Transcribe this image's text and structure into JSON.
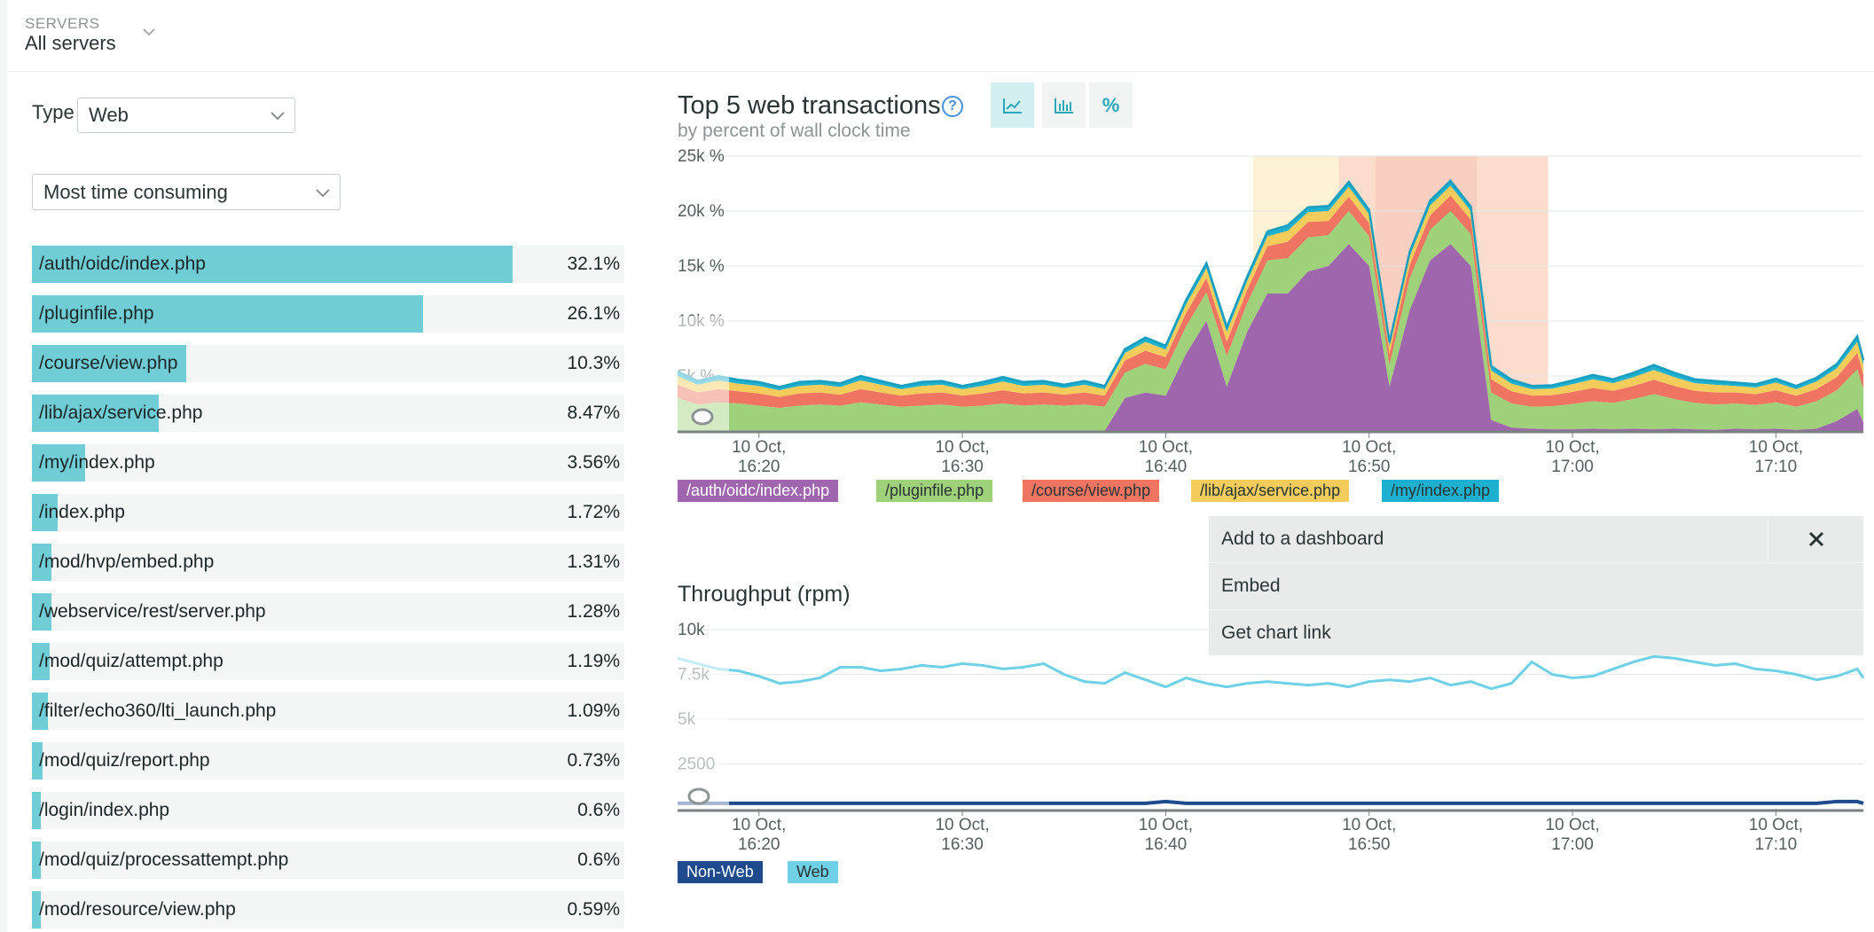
{
  "header": {
    "servers_label": "SERVERS",
    "servers_value": "All servers"
  },
  "filters": {
    "type_label": "Type",
    "type_value": "Web",
    "sort_value": "Most time consuming"
  },
  "transactions": [
    {
      "name": "/auth/oidc/index.php",
      "pct": "32.1%",
      "value": 32.1
    },
    {
      "name": "/pluginfile.php",
      "pct": "26.1%",
      "value": 26.1
    },
    {
      "name": "/course/view.php",
      "pct": "10.3%",
      "value": 10.3
    },
    {
      "name": "/lib/ajax/service.php",
      "pct": "8.47%",
      "value": 8.47
    },
    {
      "name": "/my/index.php",
      "pct": "3.56%",
      "value": 3.56
    },
    {
      "name": "/index.php",
      "pct": "1.72%",
      "value": 1.72
    },
    {
      "name": "/mod/hvp/embed.php",
      "pct": "1.31%",
      "value": 1.31
    },
    {
      "name": "/webservice/rest/server.php",
      "pct": "1.28%",
      "value": 1.28
    },
    {
      "name": "/mod/quiz/attempt.php",
      "pct": "1.19%",
      "value": 1.19
    },
    {
      "name": "/filter/echo360/lti_launch.php",
      "pct": "1.09%",
      "value": 1.09
    },
    {
      "name": "/mod/quiz/report.php",
      "pct": "0.73%",
      "value": 0.73
    },
    {
      "name": "/login/index.php",
      "pct": "0.6%",
      "value": 0.6
    },
    {
      "name": "/mod/quiz/processattempt.php",
      "pct": "0.6%",
      "value": 0.6
    },
    {
      "name": "/mod/resource/view.php",
      "pct": "0.59%",
      "value": 0.59
    }
  ],
  "top_chart": {
    "title": "Top 5 web transactions",
    "subtitle": "by percent of wall clock time",
    "help_glyph": "?",
    "pct_button": "%",
    "legend": [
      {
        "name": "/auth/oidc/index.php",
        "color": "#a066ad",
        "text_color": "#ffffff"
      },
      {
        "name": "/pluginfile.php",
        "color": "#9fd07a",
        "text_color": "#2a3434"
      },
      {
        "name": "/course/view.php",
        "color": "#ef7562",
        "text_color": "#2a3434"
      },
      {
        "name": "/lib/ajax/service.php",
        "color": "#f3cc5c",
        "text_color": "#2a3434"
      },
      {
        "name": "/my/index.php",
        "color": "#1db0cf",
        "text_color": "#2a3434"
      }
    ]
  },
  "throughput": {
    "title": "Throughput (rpm)",
    "legend": [
      {
        "name": "Non-Web",
        "color": "#1f4a8b",
        "text_color": "#ffffff"
      },
      {
        "name": "Web",
        "color": "#6fd0e6",
        "text_color": "#2a3434"
      }
    ]
  },
  "menu": {
    "add_label": "Add to a dashboard",
    "embed_label": "Embed",
    "link_label": "Get chart link"
  },
  "chart_data": [
    {
      "type": "area",
      "title": "Top 5 web transactions",
      "subtitle": "by percent of wall clock time",
      "ylim": [
        0,
        25000
      ],
      "yticks": [
        "5k %",
        "10k %",
        "15k %",
        "20k %",
        "25k %"
      ],
      "xticks": [
        {
          "l1": "10 Oct,",
          "l2": "16:20"
        },
        {
          "l1": "10 Oct,",
          "l2": "16:30"
        },
        {
          "l1": "10 Oct,",
          "l2": "16:40"
        },
        {
          "l1": "10 Oct,",
          "l2": "16:50"
        },
        {
          "l1": "10 Oct,",
          "l2": "17:00"
        },
        {
          "l1": "10 Oct,",
          "l2": "17:10"
        }
      ],
      "time_range_minutes": [
        16.0,
        74.3
      ],
      "x_minutes": [
        16.0,
        17.0,
        18.0,
        19.0,
        20.0,
        21.0,
        22.0,
        23.0,
        24.0,
        25.0,
        26.0,
        27.0,
        28.0,
        29.0,
        30.0,
        31.0,
        32.0,
        33.0,
        34.0,
        35.0,
        36.0,
        37.0,
        38.0,
        39.0,
        40.0,
        41.0,
        42.0,
        43.0,
        44.0,
        45.0,
        46.0,
        47.0,
        48.0,
        49.0,
        50.0,
        51.0,
        52.0,
        53.0,
        54.0,
        55.0,
        56.0,
        57.0,
        58.0,
        59.0,
        60.0,
        61.0,
        62.0,
        63.0,
        64.0,
        65.0,
        66.0,
        67.0,
        68.0,
        69.0,
        70.0,
        71.0,
        72.0,
        73.0,
        74.0,
        74.3
      ],
      "series": [
        {
          "name": "/auth/oidc/index.php",
          "values": [
            0,
            0,
            0,
            0,
            0,
            0,
            0,
            0,
            0,
            0,
            0,
            0,
            0,
            0,
            0,
            0,
            0,
            0,
            0,
            0,
            0,
            0,
            3000,
            3500,
            3200,
            7000,
            10000,
            4000,
            9000,
            12500,
            12500,
            14500,
            15000,
            17000,
            15000,
            4000,
            11000,
            15500,
            17000,
            15000,
            1000,
            300,
            200,
            150,
            150,
            200,
            150,
            200,
            150,
            200,
            150,
            100,
            200,
            150,
            200,
            100,
            200,
            900,
            2000,
            800
          ]
        },
        {
          "name": "/pluginfile.php",
          "values": [
            3000,
            2400,
            2600,
            2500,
            2300,
            2100,
            2300,
            2400,
            2300,
            2600,
            2400,
            2200,
            2300,
            2400,
            2200,
            2300,
            2500,
            2300,
            2400,
            2300,
            2400,
            2200,
            2300,
            2600,
            2400,
            2500,
            2600,
            2800,
            2600,
            3000,
            3200,
            3100,
            2800,
            3000,
            2700,
            2000,
            2900,
            2800,
            3000,
            2900,
            2500,
            2200,
            2000,
            2100,
            2300,
            2500,
            2400,
            2700,
            3200,
            2700,
            2400,
            2300,
            2300,
            2200,
            2400,
            2100,
            2500,
            2800,
            3600,
            3000
          ]
        },
        {
          "name": "/course/view.php",
          "values": [
            1200,
            1100,
            1200,
            1100,
            1100,
            1000,
            1100,
            1100,
            1000,
            1200,
            1100,
            1000,
            1100,
            1100,
            1000,
            1100,
            1200,
            1100,
            1100,
            1000,
            1100,
            1000,
            1100,
            1200,
            1100,
            1200,
            1300,
            1300,
            1200,
            1300,
            1500,
            1400,
            1300,
            1300,
            1200,
            1000,
            1200,
            1300,
            1400,
            1300,
            1200,
            1100,
            1000,
            1000,
            1100,
            1200,
            1100,
            1200,
            1300,
            1200,
            1100,
            1100,
            1000,
            1000,
            1100,
            1000,
            1100,
            1200,
            1500,
            1300
          ]
        },
        {
          "name": "/lib/ajax/service.php",
          "values": [
            800,
            700,
            800,
            700,
            700,
            600,
            700,
            700,
            700,
            800,
            700,
            600,
            700,
            700,
            600,
            700,
            800,
            700,
            700,
            600,
            700,
            600,
            700,
            800,
            700,
            800,
            900,
            900,
            800,
            900,
            1000,
            900,
            900,
            900,
            800,
            700,
            800,
            900,
            900,
            800,
            800,
            700,
            600,
            600,
            700,
            800,
            700,
            800,
            900,
            800,
            700,
            700,
            600,
            600,
            700,
            600,
            700,
            800,
            1000,
            900
          ]
        },
        {
          "name": "/my/index.php",
          "values": [
            400,
            350,
            380,
            350,
            350,
            300,
            350,
            350,
            330,
            400,
            350,
            300,
            350,
            350,
            300,
            350,
            400,
            350,
            350,
            300,
            350,
            300,
            350,
            400,
            350,
            400,
            450,
            450,
            400,
            450,
            500,
            450,
            450,
            450,
            400,
            350,
            400,
            450,
            450,
            400,
            400,
            350,
            300,
            300,
            350,
            400,
            350,
            400,
            450,
            400,
            350,
            350,
            300,
            300,
            350,
            300,
            350,
            400,
            500,
            450
          ]
        }
      ]
    },
    {
      "type": "line",
      "title": "Throughput (rpm)",
      "ylim": [
        0,
        10000
      ],
      "yticks": [
        "2500",
        "5k",
        "7.5k",
        "10k"
      ],
      "xticks": [
        {
          "l1": "10 Oct,",
          "l2": "16:20"
        },
        {
          "l1": "10 Oct,",
          "l2": "16:30"
        },
        {
          "l1": "10 Oct,",
          "l2": "16:40"
        },
        {
          "l1": "10 Oct,",
          "l2": "16:50"
        },
        {
          "l1": "10 Oct,",
          "l2": "17:00"
        },
        {
          "l1": "10 Oct,",
          "l2": "17:10"
        }
      ],
      "time_range_minutes": [
        16.0,
        74.3
      ],
      "x_minutes": [
        16.0,
        17.0,
        18.0,
        19.0,
        20.0,
        21.0,
        22.0,
        23.0,
        24.0,
        25.0,
        26.0,
        27.0,
        28.0,
        29.0,
        30.0,
        31.0,
        32.0,
        33.0,
        34.0,
        35.0,
        36.0,
        37.0,
        38.0,
        39.0,
        40.0,
        41.0,
        42.0,
        43.0,
        44.0,
        45.0,
        46.0,
        47.0,
        48.0,
        49.0,
        50.0,
        51.0,
        52.0,
        53.0,
        54.0,
        55.0,
        56.0,
        57.0,
        58.0,
        59.0,
        60.0,
        61.0,
        62.0,
        63.0,
        64.0,
        65.0,
        66.0,
        67.0,
        68.0,
        69.0,
        70.0,
        71.0,
        72.0,
        73.0,
        74.0,
        74.3
      ],
      "series": [
        {
          "name": "Web",
          "values": [
            8400,
            8100,
            7800,
            7700,
            7400,
            7000,
            7100,
            7300,
            7900,
            7900,
            7700,
            7800,
            8000,
            7900,
            8100,
            8000,
            7800,
            7900,
            8100,
            7500,
            7100,
            7000,
            7600,
            7200,
            6800,
            7300,
            7000,
            6800,
            7000,
            7100,
            7000,
            6900,
            7000,
            6800,
            7100,
            7200,
            7100,
            7300,
            6900,
            7100,
            6700,
            7000,
            8200,
            7500,
            7300,
            7400,
            7800,
            8200,
            8500,
            8400,
            8200,
            8000,
            8100,
            7800,
            7700,
            7500,
            7200,
            7400,
            7800,
            7300
          ]
        },
        {
          "name": "Non-Web",
          "values": [
            300,
            300,
            300,
            300,
            300,
            300,
            300,
            300,
            300,
            300,
            300,
            300,
            300,
            300,
            300,
            300,
            300,
            300,
            300,
            300,
            300,
            300,
            300,
            300,
            400,
            300,
            300,
            300,
            300,
            300,
            300,
            300,
            300,
            300,
            300,
            300,
            300,
            300,
            300,
            300,
            300,
            300,
            300,
            300,
            300,
            300,
            300,
            300,
            300,
            300,
            300,
            300,
            300,
            300,
            300,
            300,
            300,
            400,
            400,
            300
          ]
        }
      ]
    }
  ]
}
